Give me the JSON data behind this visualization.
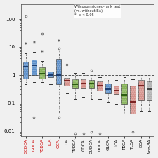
{
  "categories": [
    "GCDCA",
    "GDCA",
    "TCDCA",
    "TCA",
    "GCA",
    "CA",
    "TUDCA",
    "CDCA",
    "GUDCA",
    "UDCA",
    "GLCA",
    "LCA",
    "TDCA",
    "TLCA",
    "DCA",
    "Non-BA"
  ],
  "label_colors": [
    "#cc0000",
    "#cc0000",
    "#cc0000",
    "#cc0000",
    "#cc0000",
    "black",
    "black",
    "black",
    "black",
    "black",
    "black",
    "black",
    "black",
    "black",
    "black",
    "black"
  ],
  "box_colors": [
    "#5b8ec9",
    "#5b8ec9",
    "#82b053",
    "#5b8ec9",
    "#5b8ec9",
    "#d4908a",
    "#82b053",
    "#d4908a",
    "#82b053",
    "#d4908a",
    "#5b8ec9",
    "#d4908a",
    "#82b053",
    "#d4908a",
    "#d4908a",
    "#b0b0b0"
  ],
  "median_colors": [
    "#1a3a6e",
    "#1a3a6e",
    "#2a5a10",
    "#1a3a6e",
    "#1a3a6e",
    "#7a2020",
    "#2a5a10",
    "#7a2020",
    "#2a5a10",
    "#7a2020",
    "#1a3a6e",
    "#7a2020",
    "#2a5a10",
    "#7a2020",
    "#7a2020",
    "#404040"
  ],
  "annotation": [
    "*",
    "*",
    "*",
    "",
    "*",
    "",
    "",
    "",
    "",
    "",
    "",
    "",
    "",
    "",
    "",
    ""
  ],
  "boxes": [
    {
      "q1": 0.75,
      "median": 2.0,
      "q3": 3.0,
      "whislo": 0.45,
      "whishi": 6.0,
      "fliers_low": [],
      "fliers_high": [
        130
      ]
    },
    {
      "q1": 1.0,
      "median": 2.2,
      "q3": 3.5,
      "whislo": 0.55,
      "whishi": 6.5,
      "fliers_low": [
        0.03
      ],
      "fliers_high": []
    },
    {
      "q1": 0.75,
      "median": 1.1,
      "q3": 1.85,
      "whislo": 0.55,
      "whishi": 3.2,
      "fliers_low": [],
      "fliers_high": [
        30
      ]
    },
    {
      "q1": 0.82,
      "median": 1.0,
      "q3": 1.3,
      "whislo": 0.45,
      "whishi": 2.0,
      "fliers_low": [],
      "fliers_high": []
    },
    {
      "q1": 0.45,
      "median": 1.0,
      "q3": 3.8,
      "whislo": 0.04,
      "whishi": 7.5,
      "fliers_low": [
        0.03
      ],
      "fliers_high": [
        9.0
      ]
    },
    {
      "q1": 0.42,
      "median": 0.62,
      "q3": 0.78,
      "whislo": 0.22,
      "whishi": 1.1,
      "fliers_low": [],
      "fliers_high": [
        2.3
      ]
    },
    {
      "q1": 0.32,
      "median": 0.47,
      "q3": 0.68,
      "whislo": 0.14,
      "whishi": 1.15,
      "fliers_low": [
        0.008
      ],
      "fliers_high": []
    },
    {
      "q1": 0.32,
      "median": 0.48,
      "q3": 0.68,
      "whislo": 0.16,
      "whishi": 1.15,
      "fliers_low": [
        0.008
      ],
      "fliers_high": []
    },
    {
      "q1": 0.33,
      "median": 0.5,
      "q3": 0.65,
      "whislo": 0.14,
      "whishi": 1.1,
      "fliers_low": [
        0.009
      ],
      "fliers_high": [
        1.5
      ]
    },
    {
      "q1": 0.28,
      "median": 0.42,
      "q3": 0.6,
      "whislo": 0.14,
      "whishi": 0.85,
      "fliers_low": [
        0.008
      ],
      "fliers_high": []
    },
    {
      "q1": 0.22,
      "median": 0.3,
      "q3": 0.48,
      "whislo": 0.11,
      "whishi": 0.75,
      "fliers_low": [],
      "fliers_high": []
    },
    {
      "q1": 0.2,
      "median": 0.28,
      "q3": 0.42,
      "whislo": 0.09,
      "whishi": 0.65,
      "fliers_low": [],
      "fliers_high": []
    },
    {
      "q1": 0.09,
      "median": 0.19,
      "q3": 0.48,
      "whislo": 0.04,
      "whishi": 0.85,
      "fliers_low": [],
      "fliers_high": []
    },
    {
      "q1": 0.04,
      "median": 0.11,
      "q3": 0.42,
      "whislo": 0.012,
      "whishi": 0.68,
      "fliers_low": [
        0.009
      ],
      "fliers_high": []
    },
    {
      "q1": 0.12,
      "median": 0.42,
      "q3": 0.65,
      "whislo": 0.05,
      "whishi": 0.88,
      "fliers_low": [],
      "fliers_high": []
    },
    {
      "q1": 0.12,
      "median": 0.3,
      "q3": 0.6,
      "whislo": 0.05,
      "whishi": 0.88,
      "fliers_low": [],
      "fliers_high": []
    }
  ],
  "ylim": [
    0.0065,
    350
  ],
  "yticks": [
    0.01,
    0.1,
    1,
    10,
    100
  ],
  "yticklabels": [
    "0.01",
    "0.1",
    "1",
    "10",
    "100"
  ],
  "annotation_text": "Wilcoxon signed-rank test\n(vs. without BA)\n*: p < 0.05",
  "hline_y": 1.0,
  "background_color": "#f0f0f0"
}
